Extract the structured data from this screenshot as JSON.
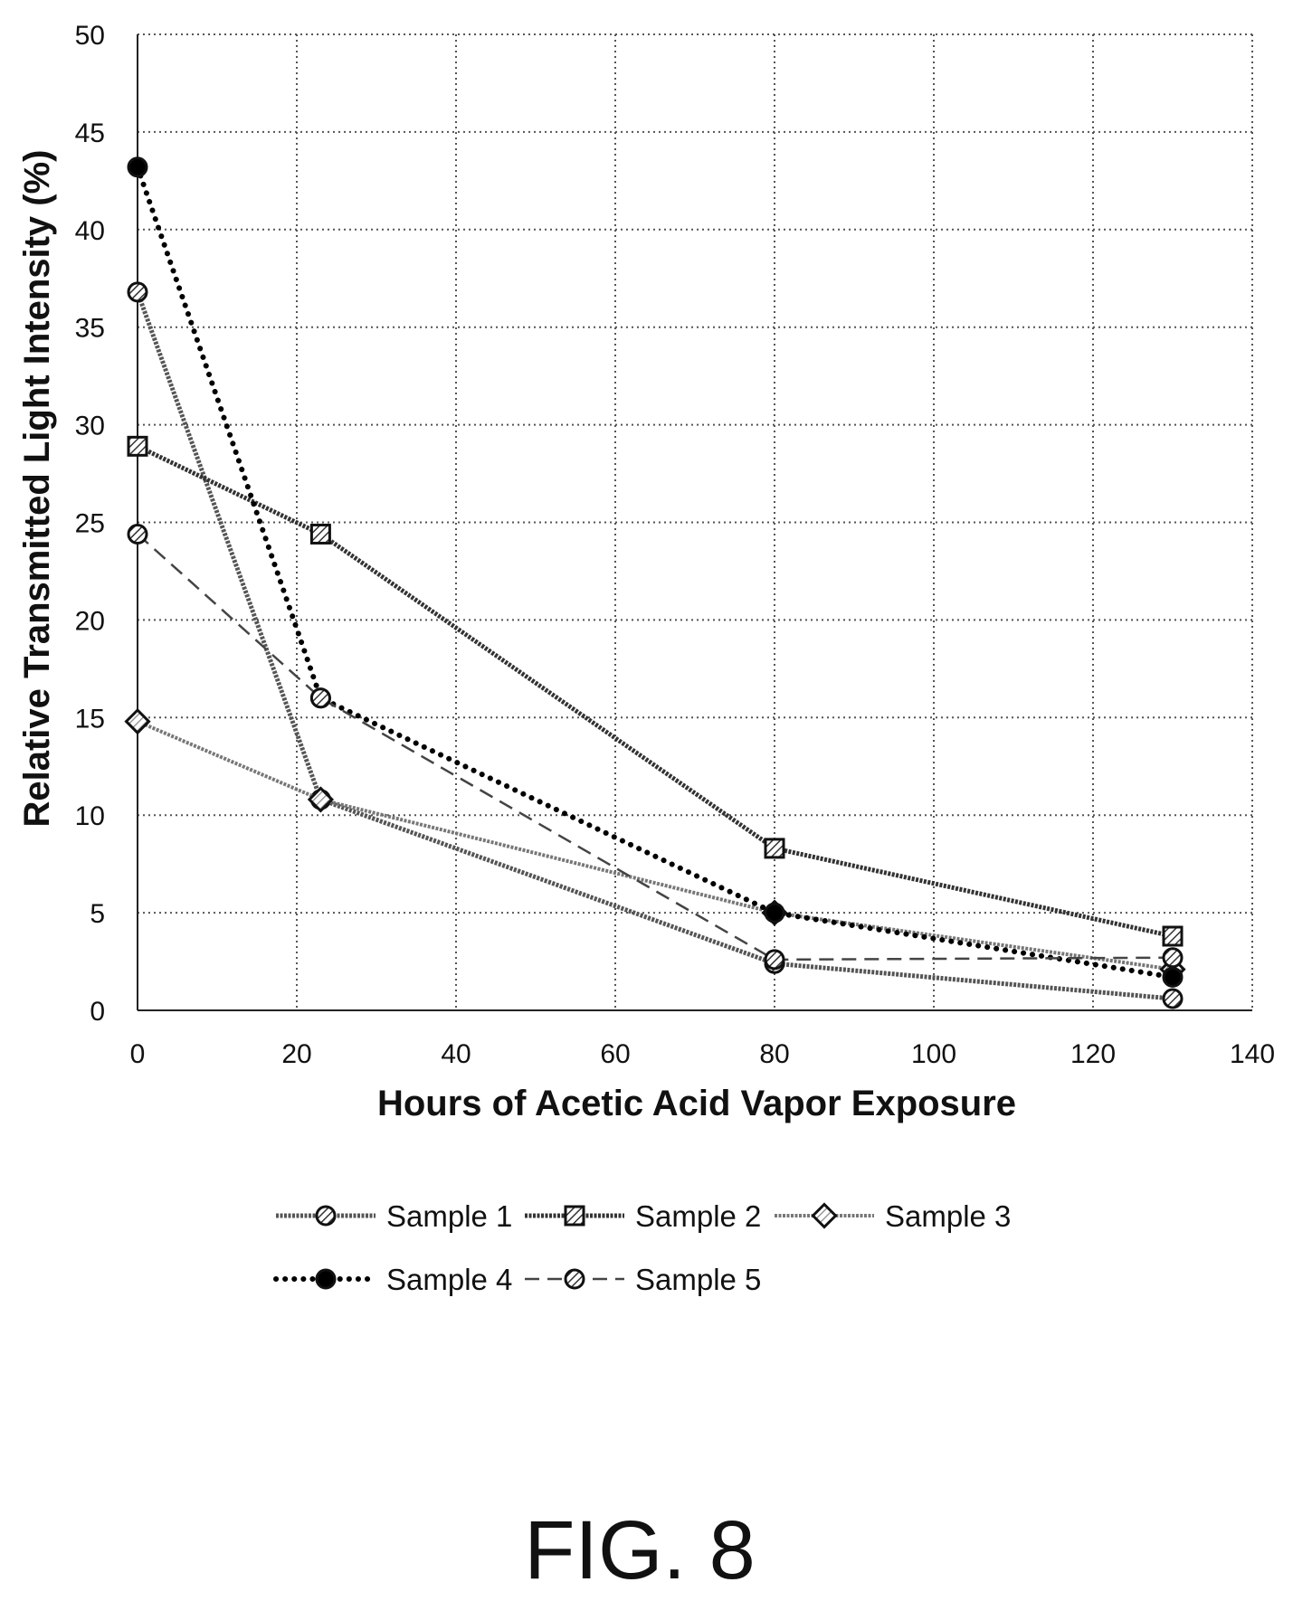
{
  "figure_label": "FIG. 8",
  "chart_data": {
    "type": "line",
    "title": "",
    "xlabel": "Hours of Acetic Acid Vapor Exposure",
    "ylabel": "Relative Transmitted Light Intensity (%)",
    "xlim": [
      0,
      140
    ],
    "ylim": [
      0,
      50
    ],
    "xticks": [
      0,
      20,
      40,
      60,
      80,
      100,
      120,
      140
    ],
    "yticks": [
      0,
      5,
      10,
      15,
      20,
      25,
      30,
      35,
      40,
      45,
      50
    ],
    "grid": true,
    "legend_position": "bottom",
    "series": [
      {
        "name": "Sample 1",
        "marker": "circle-hatched",
        "line_style": "hatched",
        "color": "#555555",
        "x": [
          0,
          23,
          80,
          130
        ],
        "y": [
          36.8,
          10.8,
          2.4,
          0.6
        ]
      },
      {
        "name": "Sample 2",
        "marker": "square-hatched",
        "line_style": "hatched",
        "color": "#333333",
        "x": [
          0,
          23,
          80,
          130
        ],
        "y": [
          28.9,
          24.4,
          8.3,
          3.8
        ]
      },
      {
        "name": "Sample 3",
        "marker": "diamond-hatched",
        "line_style": "hatched-light",
        "color": "#777777",
        "x": [
          0,
          23,
          80,
          130
        ],
        "y": [
          14.8,
          10.8,
          5.0,
          2.1
        ]
      },
      {
        "name": "Sample 4",
        "marker": "circle-filled",
        "line_style": "dotted",
        "color": "#000000",
        "x": [
          0,
          23,
          80,
          130
        ],
        "y": [
          43.2,
          16.0,
          5.0,
          1.7
        ]
      },
      {
        "name": "Sample 5",
        "marker": "circle-hatched",
        "line_style": "dashed",
        "color": "#555555",
        "x": [
          0,
          23,
          80,
          130
        ],
        "y": [
          24.4,
          16.0,
          2.6,
          2.7
        ]
      }
    ]
  }
}
